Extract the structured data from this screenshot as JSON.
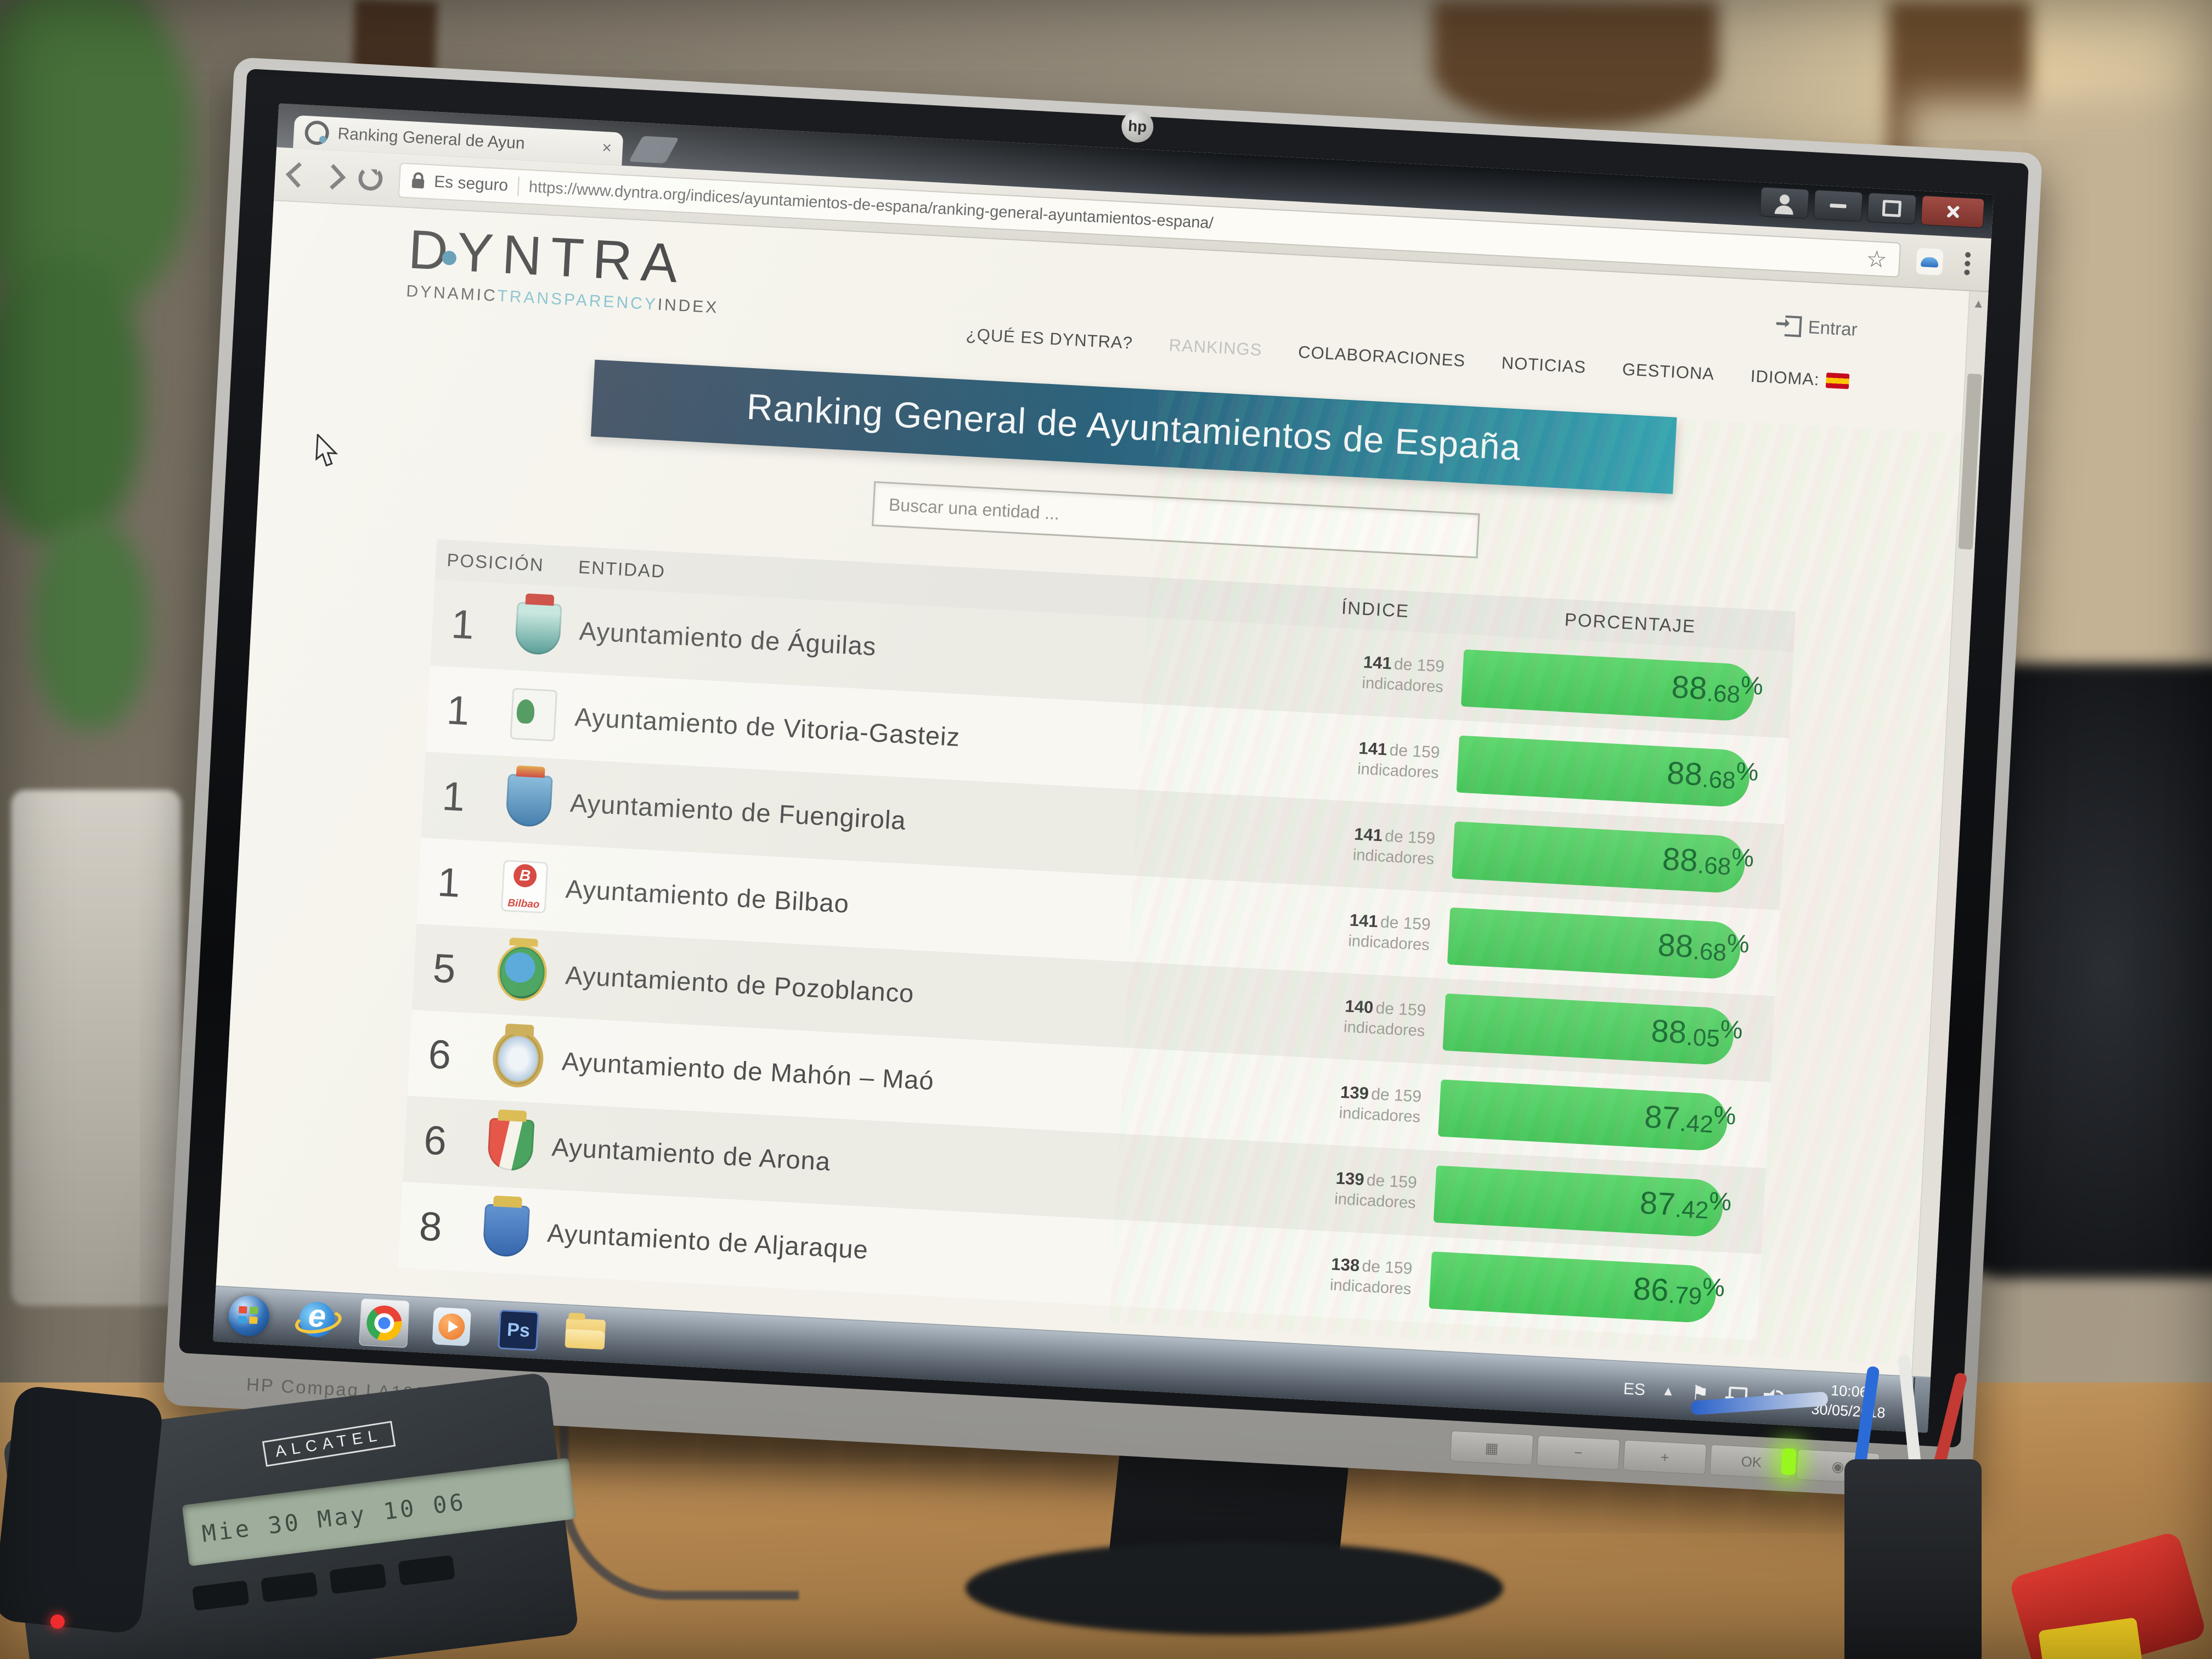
{
  "browser": {
    "tab_title": "Ranking General de Ayun",
    "security_label": "Es seguro",
    "url": "https://www.dyntra.org/indices/ayuntamientos-de-espana/ranking-general-ayuntamientos-espana/"
  },
  "header": {
    "logo_main": "DYNTRA",
    "tagline_parts": [
      "DYNAMIC",
      "TRANSPARENCY",
      "INDEX"
    ],
    "login_label": "Entrar"
  },
  "nav": {
    "items": [
      {
        "label": "¿QUÉ ES DYNTRA?",
        "state": "normal"
      },
      {
        "label": "RANKINGS",
        "state": "active"
      },
      {
        "label": "COLABORACIONES",
        "state": "normal"
      },
      {
        "label": "NOTICIAS",
        "state": "normal"
      },
      {
        "label": "GESTIONA",
        "state": "normal"
      },
      {
        "label": "IDIOMA:",
        "state": "normal",
        "flag": "spain-flag"
      }
    ]
  },
  "page": {
    "title": "Ranking General de Ayuntamientos de España",
    "search_placeholder": "Buscar una entidad ..."
  },
  "table": {
    "headers": [
      "POSICIÓN",
      "ENTIDAD",
      "ÍNDICE",
      "PORCENTAJE"
    ],
    "indicator_word": "indicadores",
    "percent_sign": "%",
    "bar_color": "#4ec95b",
    "bar_text_color": "#156a31",
    "rows": [
      {
        "position": "1",
        "entity": "Ayuntamiento de Águilas",
        "ind_num": "141",
        "ind_of": "de 159",
        "pct_int": "88",
        "pct_dec": ".68",
        "bar_pct": 88.68,
        "crest": "aguilas",
        "crest_text": "",
        "crest_sub": ""
      },
      {
        "position": "1",
        "entity": "Ayuntamiento de Vitoria-Gasteiz",
        "ind_num": "141",
        "ind_of": "de 159",
        "pct_int": "88",
        "pct_dec": ".68",
        "bar_pct": 88.68,
        "crest": "vitoria",
        "crest_text": "",
        "crest_sub": ""
      },
      {
        "position": "1",
        "entity": "Ayuntamiento de Fuengirola",
        "ind_num": "141",
        "ind_of": "de 159",
        "pct_int": "88",
        "pct_dec": ".68",
        "bar_pct": 88.68,
        "crest": "fuengirola",
        "crest_text": "",
        "crest_sub": ""
      },
      {
        "position": "1",
        "entity": "Ayuntamiento de Bilbao",
        "ind_num": "141",
        "ind_of": "de 159",
        "pct_int": "88",
        "pct_dec": ".68",
        "bar_pct": 88.68,
        "crest": "bilbao",
        "crest_text": "B",
        "crest_sub": "Bilbao"
      },
      {
        "position": "5",
        "entity": "Ayuntamiento de Pozoblanco",
        "ind_num": "140",
        "ind_of": "de 159",
        "pct_int": "88",
        "pct_dec": ".05",
        "bar_pct": 88.05,
        "crest": "pozoblanco",
        "crest_text": "",
        "crest_sub": ""
      },
      {
        "position": "6",
        "entity": "Ayuntamiento de Mahón – Maó",
        "ind_num": "139",
        "ind_of": "de 159",
        "pct_int": "87",
        "pct_dec": ".42",
        "bar_pct": 87.42,
        "crest": "mahon",
        "crest_text": "",
        "crest_sub": ""
      },
      {
        "position": "6",
        "entity": "Ayuntamiento de Arona",
        "ind_num": "139",
        "ind_of": "de 159",
        "pct_int": "87",
        "pct_dec": ".42",
        "bar_pct": 87.42,
        "crest": "arona",
        "crest_text": "",
        "crest_sub": ""
      },
      {
        "position": "8",
        "entity": "Ayuntamiento de Aljaraque",
        "ind_num": "138",
        "ind_of": "de 159",
        "pct_int": "86",
        "pct_dec": ".79",
        "bar_pct": 86.79,
        "crest": "aljaraque",
        "crest_text": "",
        "crest_sub": ""
      }
    ]
  },
  "taskbar": {
    "ps_label": "Ps",
    "tray_language": "ES",
    "time": "10:06",
    "date": "30/05/2018"
  },
  "monitor": {
    "brand": "hp",
    "model": "HP Compaq LA1905wg",
    "button_labels": [
      "▦",
      "−",
      "+",
      "OK",
      "◉"
    ]
  },
  "phone": {
    "brand": "ALCATEL",
    "display_text": "Mie 30 May 10 06"
  }
}
